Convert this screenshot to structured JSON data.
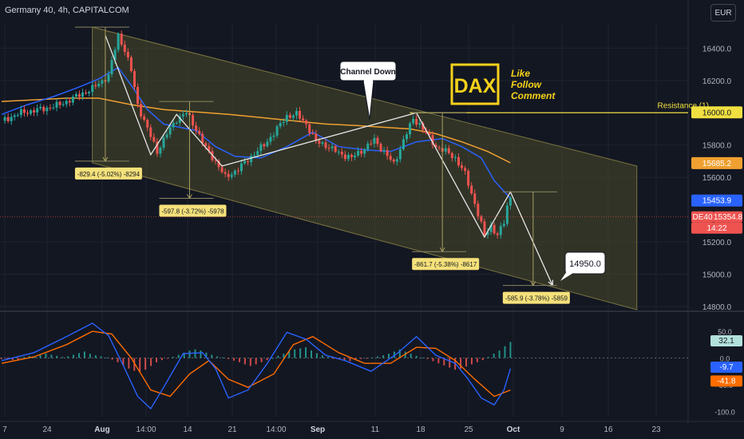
{
  "header": {
    "title": "Germany 40, 4h, CAPITALCOM",
    "currency": "EUR"
  },
  "colors": {
    "background": "#131722",
    "grid": "#1f2330",
    "candle_up": "#26a69a",
    "candle_down": "#ef5350",
    "ma_fast": "#2962ff",
    "ma_slow": "#f0a030",
    "channel_fill": "#4b4a2a",
    "resistance": "#f0e040",
    "measure_box": "#f5e17a",
    "macd": "#2962ff",
    "signal": "#ff6d00"
  },
  "chart_data": [
    {
      "type": "candlestick",
      "symbol": "DE40",
      "timeframe": "4h",
      "x_tick_labels": [
        "7",
        "24",
        "Aug",
        "14:00",
        "14",
        "21",
        "14:00",
        "Sep",
        "11",
        "18",
        "25",
        "Oct",
        "9",
        "16",
        "23"
      ],
      "y_tick_labels": [
        "16400.0",
        "16200.0",
        "15800.0",
        "15600.0",
        "15200.0",
        "15000.0",
        "14800.0"
      ],
      "ylim": [
        14790,
        16550
      ],
      "close_path": [
        [
          0,
          15950
        ],
        [
          6,
          16000
        ],
        [
          12,
          16020
        ],
        [
          18,
          16050
        ],
        [
          24,
          16110
        ],
        [
          28,
          16150
        ],
        [
          33,
          16230
        ],
        [
          36,
          16480
        ],
        [
          38,
          16390
        ],
        [
          40,
          16260
        ],
        [
          42,
          16050
        ],
        [
          45,
          15900
        ],
        [
          48,
          15760
        ],
        [
          51,
          15870
        ],
        [
          54,
          15960
        ],
        [
          57,
          16000
        ],
        [
          60,
          15900
        ],
        [
          63,
          15780
        ],
        [
          66,
          15700
        ],
        [
          69,
          15600
        ],
        [
          73,
          15650
        ],
        [
          77,
          15730
        ],
        [
          81,
          15800
        ],
        [
          85,
          15900
        ],
        [
          88,
          15980
        ],
        [
          91,
          15990
        ],
        [
          94,
          15930
        ],
        [
          97,
          15820
        ],
        [
          100,
          15800
        ],
        [
          104,
          15750
        ],
        [
          108,
          15720
        ],
        [
          112,
          15780
        ],
        [
          115,
          15830
        ],
        [
          118,
          15760
        ],
        [
          121,
          15680
        ],
        [
          124,
          15830
        ],
        [
          127,
          15960
        ],
        [
          129,
          15930
        ],
        [
          131,
          15870
        ],
        [
          134,
          15790
        ],
        [
          137,
          15760
        ],
        [
          140,
          15720
        ],
        [
          143,
          15620
        ],
        [
          146,
          15440
        ],
        [
          149,
          15240
        ],
        [
          151,
          15300
        ],
        [
          153,
          15240
        ],
        [
          155,
          15320
        ],
        [
          156,
          15420
        ],
        [
          157,
          15480
        ]
      ],
      "series": [
        {
          "name": "MA fast",
          "points": [
            [
              0,
              15990
            ],
            [
              8,
              16050
            ],
            [
              16,
              16100
            ],
            [
              24,
              16160
            ],
            [
              30,
              16210
            ],
            [
              36,
              16280
            ],
            [
              40,
              16170
            ],
            [
              45,
              16020
            ],
            [
              50,
              15930
            ],
            [
              55,
              15910
            ],
            [
              60,
              15890
            ],
            [
              66,
              15790
            ],
            [
              72,
              15730
            ],
            [
              80,
              15720
            ],
            [
              88,
              15790
            ],
            [
              96,
              15880
            ],
            [
              104,
              15790
            ],
            [
              112,
              15770
            ],
            [
              120,
              15760
            ],
            [
              128,
              15820
            ],
            [
              136,
              15840
            ],
            [
              142,
              15790
            ],
            [
              148,
              15720
            ],
            [
              152,
              15580
            ],
            [
              157,
              15470
            ]
          ]
        },
        {
          "name": "MA slow",
          "points": [
            [
              0,
              16070
            ],
            [
              10,
              16080
            ],
            [
              20,
              16090
            ],
            [
              30,
              16090
            ],
            [
              40,
              16050
            ],
            [
              50,
              16020
            ],
            [
              60,
              16005
            ],
            [
              70,
              15990
            ],
            [
              80,
              15970
            ],
            [
              90,
              15950
            ],
            [
              100,
              15930
            ],
            [
              110,
              15920
            ],
            [
              118,
              15910
            ],
            [
              126,
              15900
            ],
            [
              134,
              15870
            ],
            [
              142,
              15820
            ],
            [
              150,
              15760
            ],
            [
              157,
              15690
            ]
          ]
        }
      ],
      "drawings": {
        "channel_down": {
          "label": "Channel Down",
          "upper": [
            [
              28,
              16530
            ],
            [
              196,
              15670
            ]
          ],
          "lower": [
            [
              28,
              15690
            ],
            [
              196,
              14780
            ]
          ]
        },
        "resistance": {
          "label": "Resistance (1)",
          "value": 16000.0
        },
        "target": {
          "label": "14950.0",
          "value": 14950
        },
        "projection_path": [
          [
            32,
            16480
          ],
          [
            46,
            15740
          ],
          [
            54,
            15990
          ],
          [
            68,
            15670
          ],
          [
            128,
            16000
          ],
          [
            149,
            15230
          ],
          [
            157,
            15510
          ],
          [
            170,
            14930
          ]
        ],
        "measurements": [
          {
            "label": "-829.4 (-5.02%) -8294",
            "x": 32,
            "from": 16530,
            "to": 15700
          },
          {
            "label": "-597.8 (-3.72%) -5978",
            "x": 58,
            "from": 16070,
            "to": 15470
          },
          {
            "label": "-861.7 (-5.38%) -8617",
            "x": 136,
            "from": 16000,
            "to": 15140
          },
          {
            "label": "-585.9 (-3.78%) -5859",
            "x": 164,
            "from": 15510,
            "to": 14930
          }
        ]
      },
      "price_labels": [
        {
          "text": "15685.2",
          "value": 15685.2,
          "color": "#f0a030"
        },
        {
          "text": "15453.9",
          "value": 15453.9,
          "color": "#2962ff"
        },
        {
          "text": "DE40",
          "value": 15354.8,
          "color": "#ef5350"
        },
        {
          "text": "15354.8",
          "value": 15354.8,
          "color": "#ef5350"
        },
        {
          "text": "14:22",
          "value": 15354.8,
          "color": "#ef5350"
        },
        {
          "text": "16000.0",
          "value": 16000.0,
          "color": "#f0e040"
        }
      ],
      "branding": {
        "ticker_box": "DAX",
        "lines": [
          "Like",
          "Follow",
          "Comment"
        ]
      }
    },
    {
      "type": "macd",
      "y_tick_labels": [
        "50.0",
        "0.0",
        "-50.0",
        "-100.0"
      ],
      "ylim": [
        -110,
        80
      ],
      "macd_points": [
        [
          0,
          -5
        ],
        [
          10,
          10
        ],
        [
          20,
          40
        ],
        [
          28,
          65
        ],
        [
          33,
          42
        ],
        [
          38,
          -20
        ],
        [
          42,
          -72
        ],
        [
          46,
          -95
        ],
        [
          50,
          -55
        ],
        [
          56,
          8
        ],
        [
          62,
          10
        ],
        [
          66,
          -20
        ],
        [
          70,
          -75
        ],
        [
          76,
          -60
        ],
        [
          82,
          -10
        ],
        [
          88,
          48
        ],
        [
          94,
          35
        ],
        [
          100,
          5
        ],
        [
          106,
          -5
        ],
        [
          114,
          -25
        ],
        [
          122,
          8
        ],
        [
          128,
          40
        ],
        [
          134,
          5
        ],
        [
          140,
          -10
        ],
        [
          144,
          -40
        ],
        [
          148,
          -75
        ],
        [
          152,
          -88
        ],
        [
          155,
          -60
        ],
        [
          157,
          -20
        ]
      ],
      "signal_points": [
        [
          0,
          -10
        ],
        [
          10,
          2
        ],
        [
          20,
          25
        ],
        [
          28,
          50
        ],
        [
          34,
          45
        ],
        [
          40,
          0
        ],
        [
          46,
          -60
        ],
        [
          52,
          -72
        ],
        [
          58,
          -30
        ],
        [
          64,
          -5
        ],
        [
          70,
          -40
        ],
        [
          76,
          -55
        ],
        [
          84,
          -30
        ],
        [
          90,
          25
        ],
        [
          96,
          40
        ],
        [
          104,
          10
        ],
        [
          112,
          -10
        ],
        [
          120,
          -10
        ],
        [
          128,
          20
        ],
        [
          134,
          18
        ],
        [
          140,
          -5
        ],
        [
          146,
          -40
        ],
        [
          152,
          -72
        ],
        [
          157,
          -60
        ]
      ],
      "histogram": [
        -2,
        -3,
        -4,
        -3,
        2,
        4,
        3,
        5,
        8,
        6,
        4,
        2,
        3,
        6,
        9,
        12,
        8,
        5,
        3,
        1,
        -3,
        -8,
        -14,
        -20,
        -24,
        -26,
        -22,
        -15,
        -8,
        -4,
        -1,
        2,
        6,
        10,
        14,
        16,
        14,
        10,
        6,
        3,
        1,
        -2,
        -5,
        -8,
        -12,
        -15,
        -12,
        -8,
        -4,
        0,
        4,
        8,
        12,
        16,
        18,
        20,
        14,
        9,
        5,
        2,
        -1,
        -3,
        -5,
        -6,
        -4,
        -2,
        -1,
        1,
        3,
        5,
        8,
        12,
        16,
        12,
        8,
        4,
        1,
        -2,
        -6,
        -10,
        -14,
        -18,
        -22,
        -20,
        -16,
        -12,
        -8,
        -4,
        2,
        8,
        14,
        22,
        30
      ],
      "value_labels": [
        {
          "text": "32.1",
          "value": 32.1,
          "color": "#26a69a"
        },
        {
          "text": "-9.7",
          "value": -9.7,
          "color": "#2962ff"
        },
        {
          "text": "-41.8",
          "value": -41.8,
          "color": "#ff6d00"
        }
      ]
    }
  ]
}
